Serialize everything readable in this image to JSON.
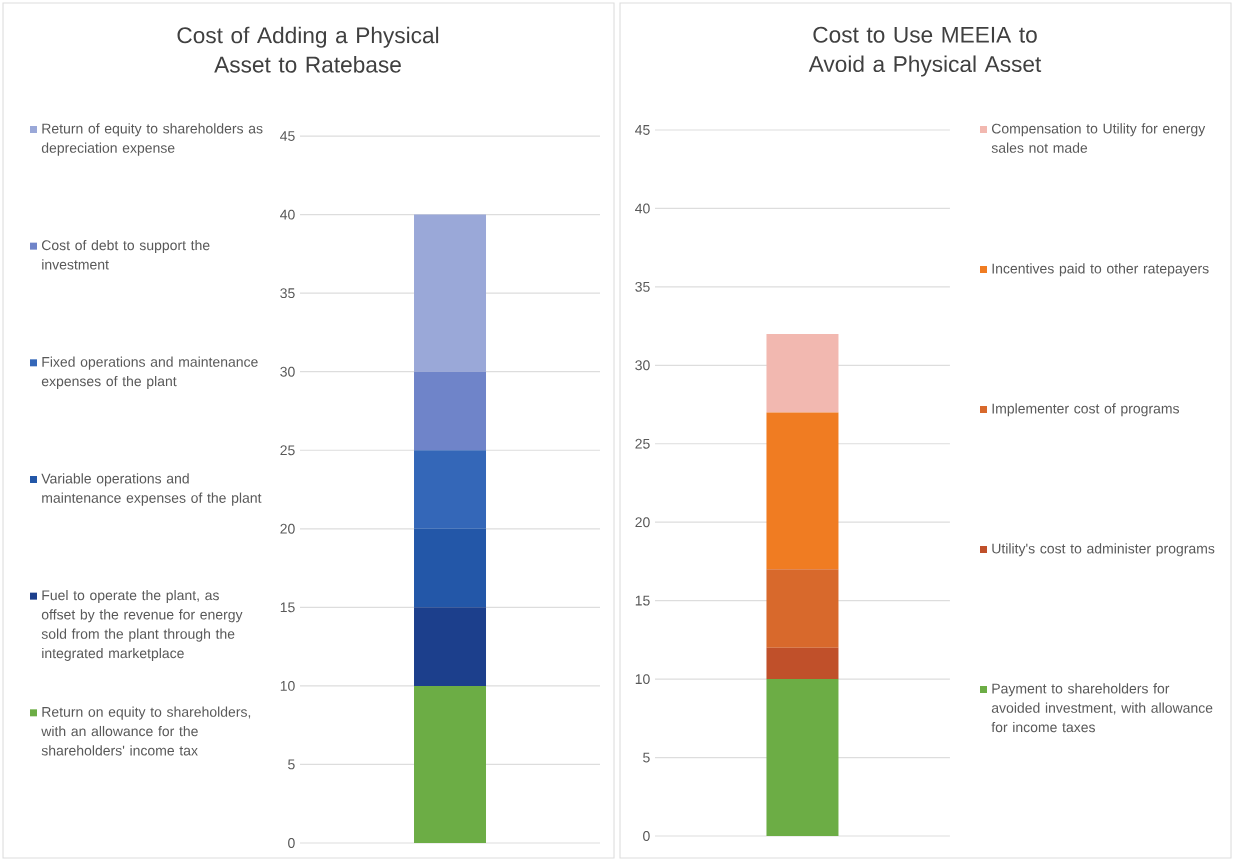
{
  "chart_data": [
    {
      "type": "bar",
      "title": "Cost of Adding a Physical Asset to Ratebase",
      "categories": [
        null
      ],
      "stacked": true,
      "legend": "left",
      "grid": "y",
      "tick_labels": "y",
      "ylim": [
        0,
        45
      ],
      "yticks": [
        0,
        5,
        10,
        15,
        20,
        25,
        30,
        35,
        40,
        45
      ],
      "series": [
        {
          "name": "Return on equity to shareholders, with an allowance for the shareholders' income tax",
          "color": "#6cad45",
          "values": [
            10
          ]
        },
        {
          "name": "Fuel to operate the plant, as offset by the revenue for energy sold from the plant through the integrated marketplace",
          "color": "#1c3f8c",
          "values": [
            5
          ]
        },
        {
          "name": "Variable operations and maintenance expenses of the plant",
          "color": "#2357a8",
          "values": [
            5
          ]
        },
        {
          "name": "Fixed operations and maintenance expenses of the plant",
          "color": "#3467b8",
          "values": [
            5
          ]
        },
        {
          "name": "Cost of debt to support the investment",
          "color": "#6f84c9",
          "values": [
            5
          ]
        },
        {
          "name": "Return of equity to shareholders as depreciation expense",
          "color": "#9aa8d8",
          "values": [
            10
          ]
        }
      ]
    },
    {
      "type": "bar",
      "title": "Cost to Use MEEIA to Avoid a Physical Asset",
      "categories": [
        null
      ],
      "stacked": true,
      "legend": "right",
      "grid": "y",
      "tick_labels": "y",
      "ylim": [
        0,
        45
      ],
      "yticks": [
        0,
        5,
        10,
        15,
        20,
        25,
        30,
        35,
        40,
        45
      ],
      "series": [
        {
          "name": "Payment to shareholders for avoided investment, with allowance for income taxes",
          "color": "#6cad45",
          "values": [
            10
          ]
        },
        {
          "name": "Utility's cost to administer programs",
          "color": "#c0502a",
          "values": [
            2
          ]
        },
        {
          "name": "Implementer cost of programs",
          "color": "#d8692c",
          "values": [
            5
          ]
        },
        {
          "name": "Incentives paid to other ratepayers",
          "color": "#f07c22",
          "values": [
            10
          ]
        },
        {
          "name": "Compensation to Utility for energy sales not made",
          "color": "#f2b8b0",
          "values": [
            5
          ]
        }
      ]
    }
  ]
}
